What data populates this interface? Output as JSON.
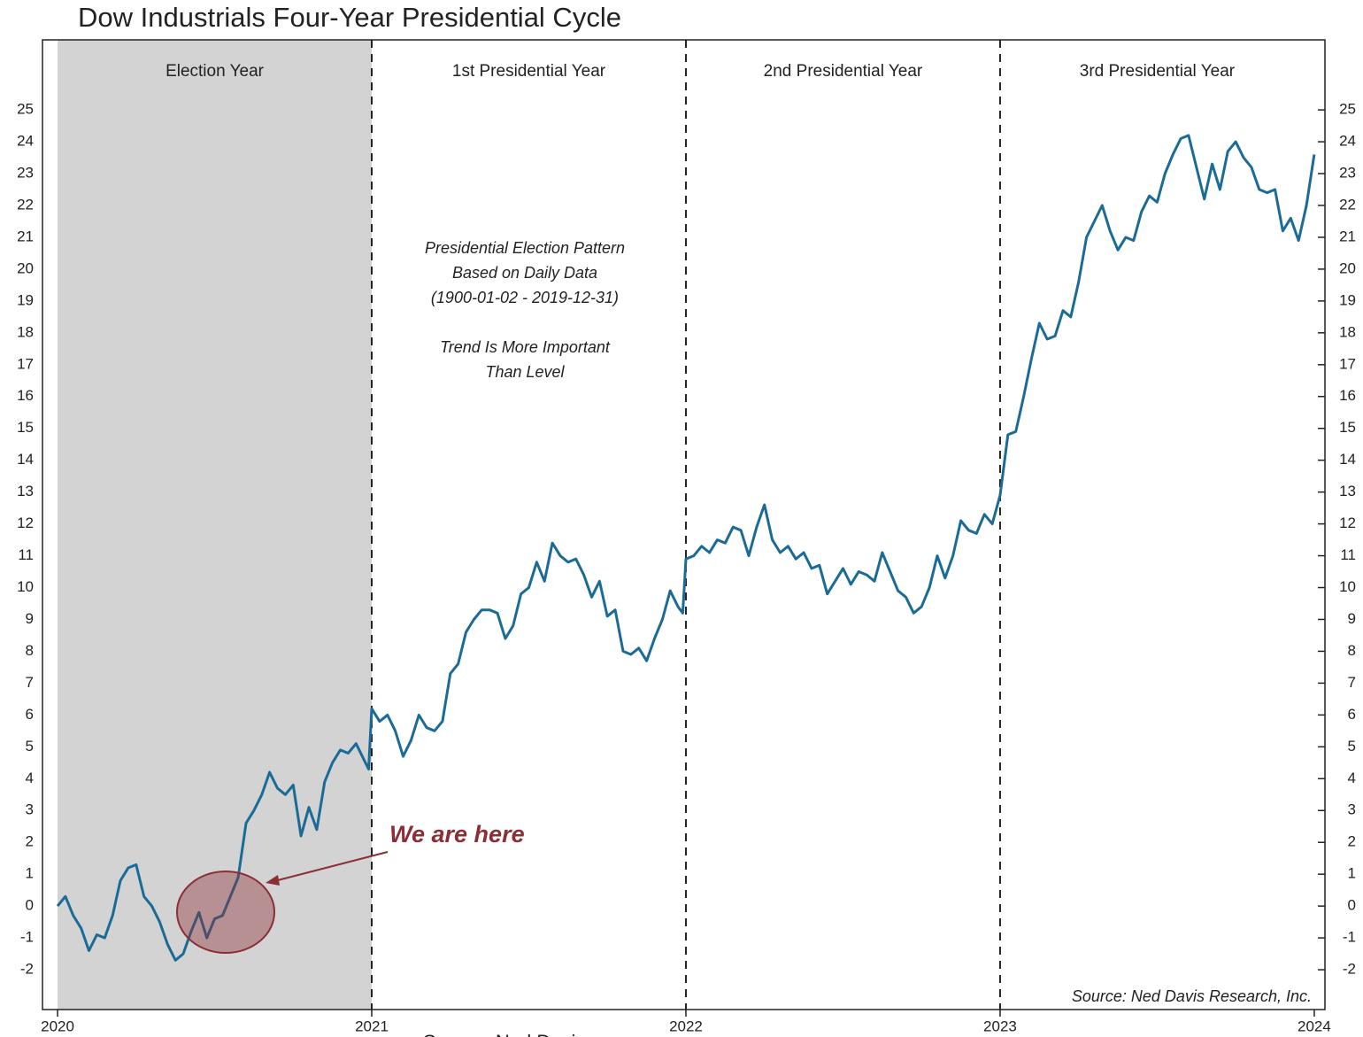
{
  "chart_data": {
    "type": "line",
    "title": "Dow Industrials Four-Year Presidential Cycle",
    "x": [
      2020,
      2020.025,
      2020.05,
      2020.075,
      2020.1,
      2020.125,
      2020.15,
      2020.175,
      2020.2,
      2020.225,
      2020.25,
      2020.275,
      2020.3,
      2020.325,
      2020.35,
      2020.375,
      2020.4,
      2020.425,
      2020.45,
      2020.475,
      2020.5,
      2020.525,
      2020.55,
      2020.575,
      2020.6,
      2020.625,
      2020.65,
      2020.675,
      2020.7,
      2020.725,
      2020.75,
      2020.775,
      2020.8,
      2020.825,
      2020.85,
      2020.875,
      2020.9,
      2020.925,
      2020.95,
      2020.975,
      2020.99,
      2021,
      2021.025,
      2021.05,
      2021.075,
      2021.1,
      2021.125,
      2021.15,
      2021.175,
      2021.2,
      2021.225,
      2021.25,
      2021.275,
      2021.3,
      2021.325,
      2021.35,
      2021.375,
      2021.4,
      2021.425,
      2021.45,
      2021.475,
      2021.5,
      2021.525,
      2021.55,
      2021.575,
      2021.6,
      2021.625,
      2021.65,
      2021.675,
      2021.7,
      2021.725,
      2021.75,
      2021.775,
      2021.8,
      2021.825,
      2021.85,
      2021.875,
      2021.9,
      2021.925,
      2021.95,
      2021.975,
      2021.99,
      2022,
      2022.025,
      2022.05,
      2022.075,
      2022.1,
      2022.125,
      2022.15,
      2022.175,
      2022.2,
      2022.225,
      2022.25,
      2022.275,
      2022.3,
      2022.325,
      2022.35,
      2022.375,
      2022.4,
      2022.425,
      2022.45,
      2022.475,
      2022.5,
      2022.525,
      2022.55,
      2022.575,
      2022.6,
      2022.625,
      2022.65,
      2022.675,
      2022.7,
      2022.725,
      2022.75,
      2022.775,
      2022.8,
      2022.825,
      2022.85,
      2022.875,
      2022.9,
      2022.925,
      2022.95,
      2022.975,
      2023,
      2023.025,
      2023.05,
      2023.075,
      2023.1,
      2023.125,
      2023.15,
      2023.175,
      2023.2,
      2023.225,
      2023.25,
      2023.275,
      2023.3,
      2023.325,
      2023.35,
      2023.375,
      2023.4,
      2023.425,
      2023.45,
      2023.475,
      2023.5,
      2023.525,
      2023.55,
      2023.575,
      2023.6,
      2023.625,
      2023.65,
      2023.675,
      2023.7,
      2023.725,
      2023.75,
      2023.775,
      2023.8,
      2023.825,
      2023.85,
      2023.875,
      2023.9,
      2023.925,
      2023.95,
      2023.975,
      2024
    ],
    "series": [
      {
        "name": "Presidential Election Pattern",
        "color": "#1b6b97",
        "values": [
          0,
          0.3,
          -0.3,
          -0.7,
          -1.4,
          -0.9,
          -1.0,
          -0.3,
          0.8,
          1.2,
          1.3,
          0.3,
          0,
          -0.5,
          -1.2,
          -1.7,
          -1.5,
          -0.8,
          -0.2,
          -1.0,
          -0.4,
          -0.3,
          0.3,
          0.9,
          2.6,
          3.0,
          3.5,
          4.2,
          3.7,
          3.5,
          3.8,
          2.2,
          3.1,
          2.4,
          3.9,
          4.5,
          4.9,
          4.8,
          5.1,
          4.6,
          4.3,
          6.2,
          5.8,
          6.0,
          5.5,
          4.7,
          5.2,
          6.0,
          5.6,
          5.5,
          5.8,
          7.3,
          7.6,
          8.6,
          9.0,
          9.3,
          9.3,
          9.2,
          8.4,
          8.8,
          9.8,
          10.0,
          10.8,
          10.2,
          11.4,
          11.0,
          10.8,
          10.9,
          10.4,
          9.7,
          10.2,
          9.1,
          9.3,
          8.0,
          7.9,
          8.1,
          7.7,
          8.4,
          9.0,
          9.9,
          9.4,
          9.2,
          10.9,
          11.0,
          11.3,
          11.1,
          11.5,
          11.4,
          11.9,
          11.8,
          11.0,
          11.9,
          12.6,
          11.5,
          11.1,
          11.3,
          10.9,
          11.1,
          10.6,
          10.7,
          9.8,
          10.2,
          10.6,
          10.1,
          10.5,
          10.4,
          10.2,
          11.1,
          10.5,
          9.9,
          9.7,
          9.2,
          9.4,
          10.0,
          11.0,
          10.3,
          11.0,
          12.1,
          11.8,
          11.7,
          12.3,
          12.0,
          12.9,
          14.8,
          14.9,
          16.0,
          17.2,
          18.3,
          17.8,
          17.9,
          18.7,
          18.5,
          19.6,
          21.0,
          21.5,
          22.0,
          21.2,
          20.6,
          21.0,
          20.9,
          21.8,
          22.3,
          22.1,
          23.0,
          23.6,
          24.1,
          24.2,
          23.2,
          22.2,
          23.3,
          22.5,
          23.7,
          24.0,
          23.5,
          23.2,
          22.5,
          22.4,
          22.5,
          21.2,
          21.6,
          20.9,
          22.0,
          23.6
        ]
      }
    ],
    "xlim": [
      2019.952,
      2024.034
    ],
    "xticks": [
      2020,
      2021,
      2022,
      2023,
      2024
    ],
    "ylim": [
      -3.25,
      27.2
    ],
    "yticks": [
      -2,
      -1,
      0,
      1,
      2,
      3,
      4,
      5,
      6,
      7,
      8,
      9,
      10,
      11,
      12,
      13,
      14,
      15,
      16,
      17,
      18,
      19,
      20,
      21,
      22,
      23,
      24,
      25
    ],
    "regions": [
      {
        "label": "Election Year",
        "start": 2020,
        "end": 2021,
        "shade": "#d3d3d3"
      },
      {
        "label": "1st Presidential Year",
        "start": 2021,
        "end": 2022
      },
      {
        "label": "2nd Presidential Year",
        "start": 2022,
        "end": 2023
      },
      {
        "label": "3rd Presidential Year",
        "start": 2023,
        "end": 2024
      }
    ],
    "annotation_lines": [
      "Presidential Election Pattern",
      "Based on Daily Data",
      "(1900-01-02 - 2019-12-31)",
      "",
      "Trend Is More Important",
      "Than Level"
    ],
    "callout": {
      "text": "We are here",
      "color": "#8b2e35"
    },
    "source": "Source:   Ned Davis Research, Inc.",
    "footer": "Source: Ned Davis"
  }
}
